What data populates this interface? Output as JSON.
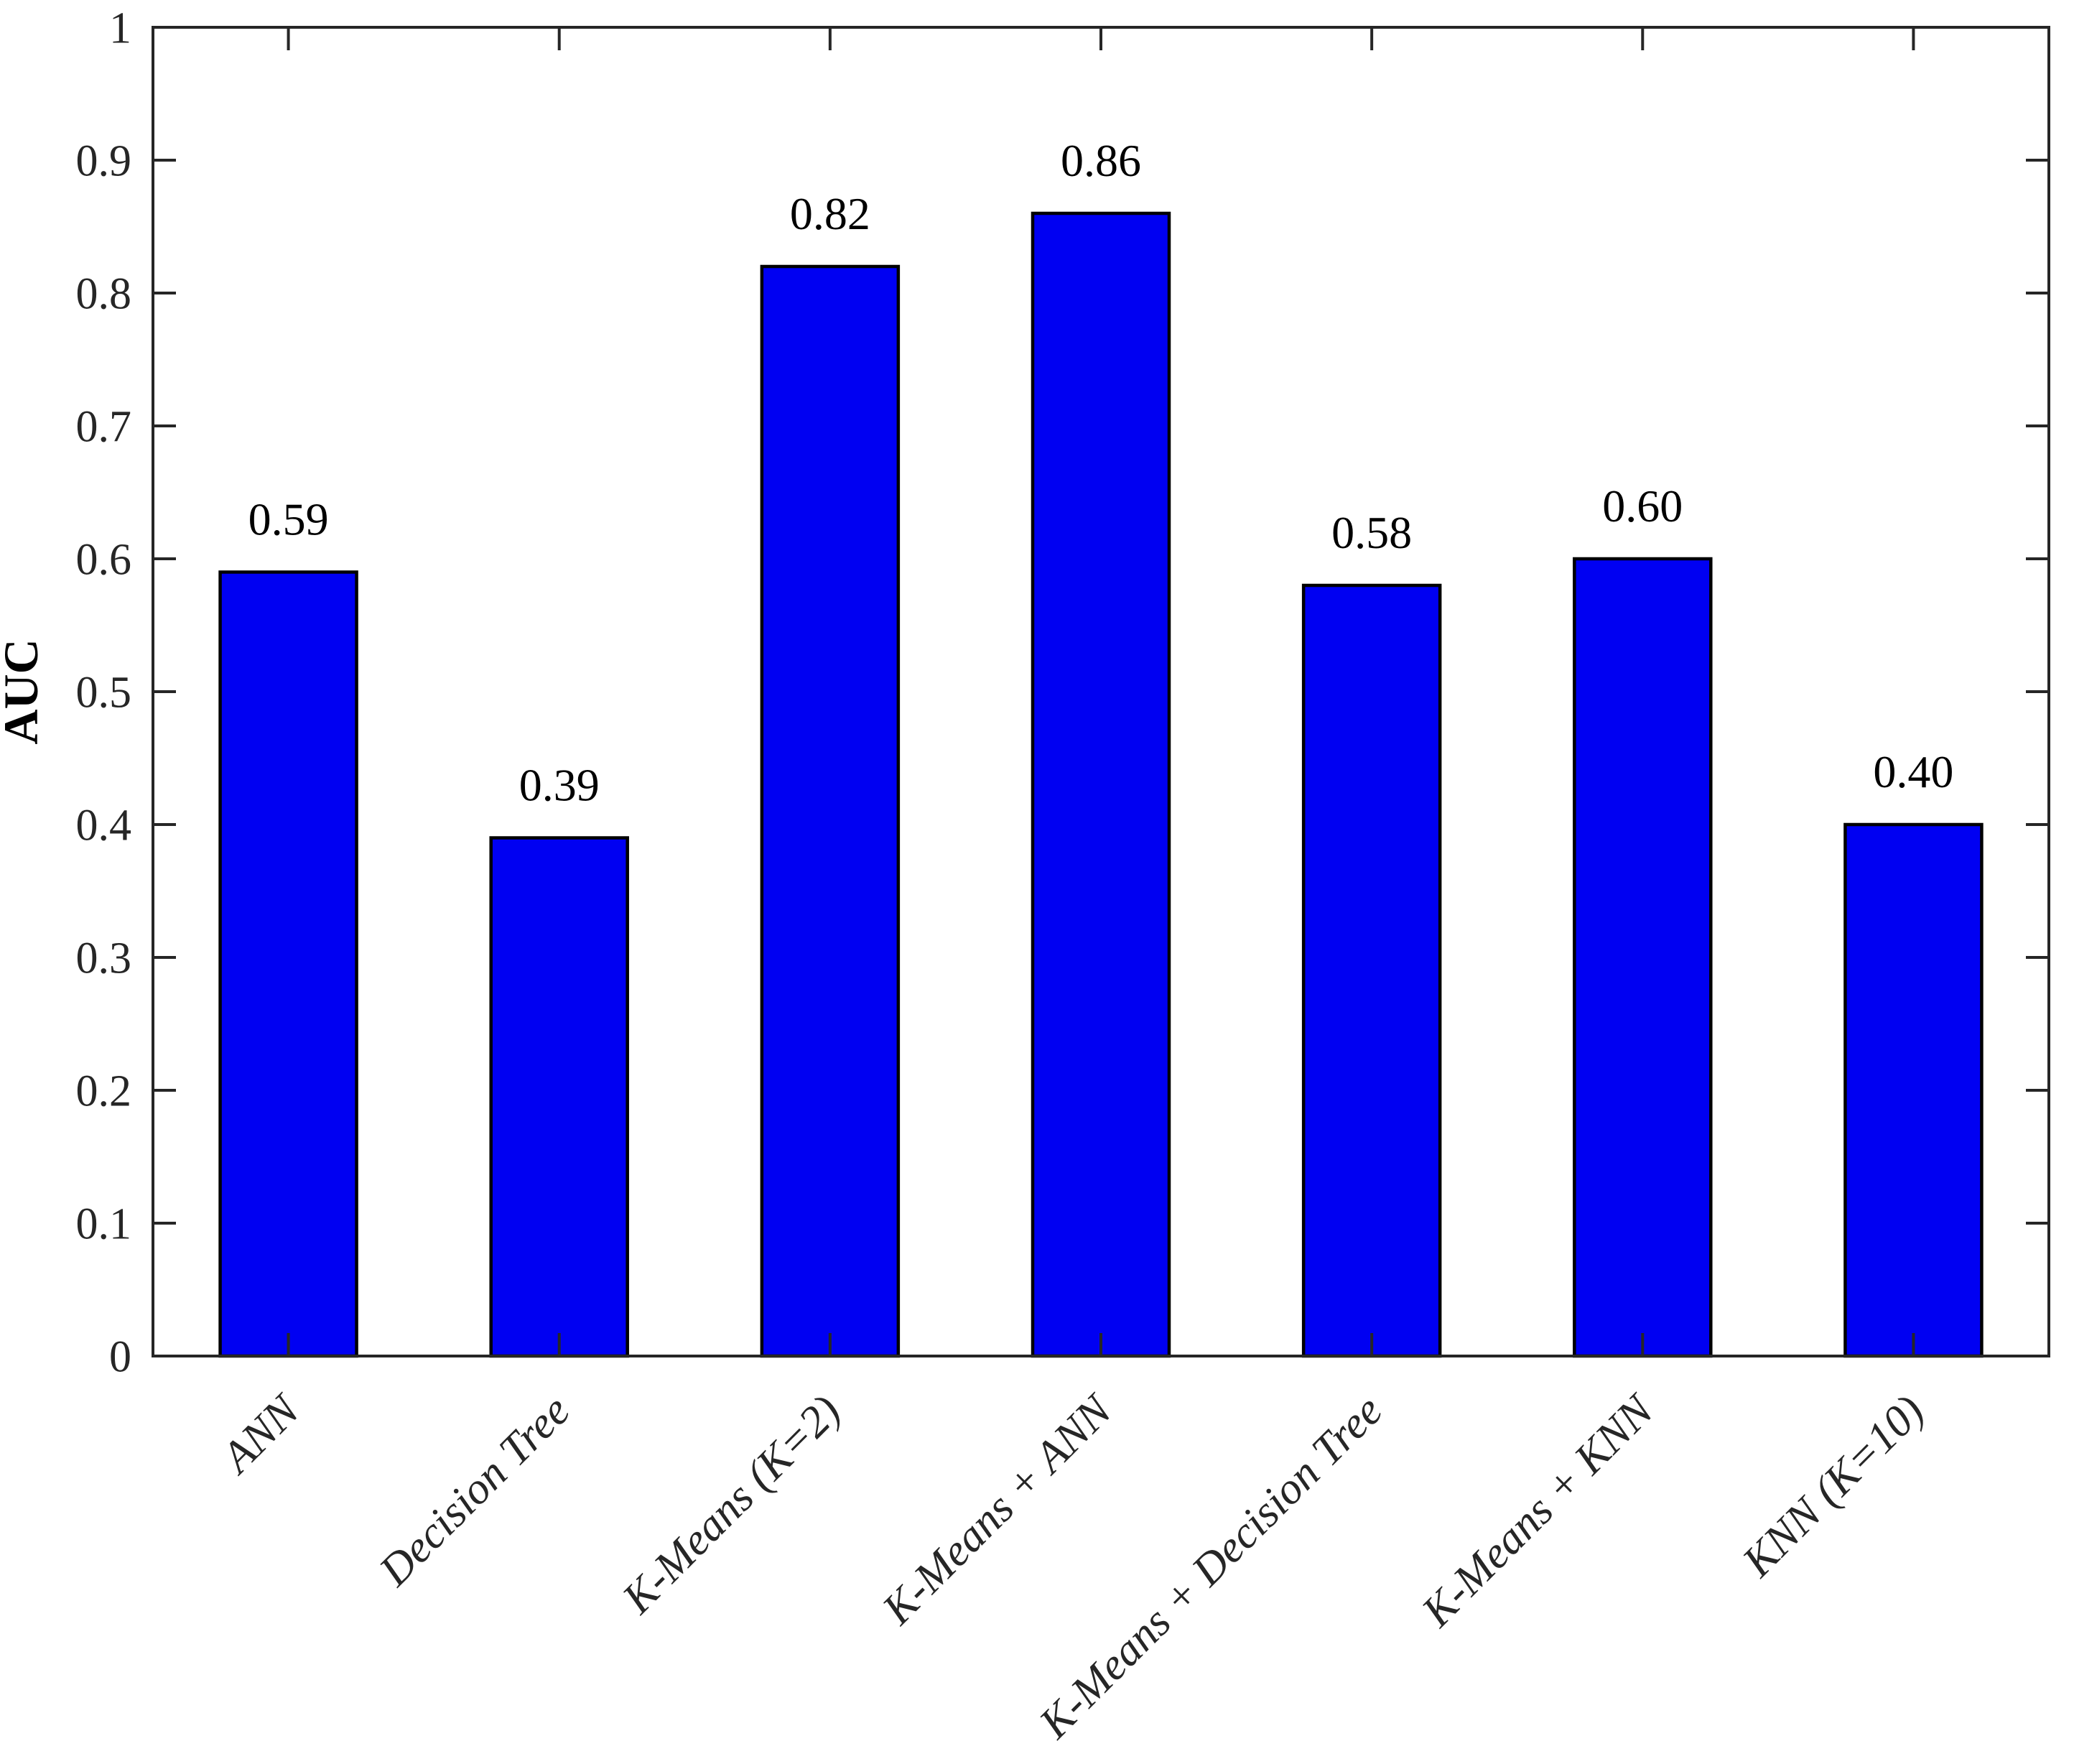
{
  "figure": {
    "description": "Bar chart comparing AUC of classification models"
  },
  "chart_data": {
    "type": "bar",
    "title": "",
    "xlabel": "",
    "ylabel": "AUC",
    "categories": [
      "ANN",
      "Decision Tree",
      "K-Means (K=2)",
      "K-Means + ANN",
      "K-Means + Decision Tree",
      "K-Means + KNN",
      "KNN (K=10)"
    ],
    "values": [
      0.59,
      0.39,
      0.82,
      0.86,
      0.58,
      0.6,
      0.4
    ],
    "value_labels": [
      "0.59",
      "0.39",
      "0.82",
      "0.86",
      "0.58",
      "0.60",
      "0.40"
    ],
    "ylim": [
      0,
      1
    ],
    "yticks": [
      0,
      0.1,
      0.2,
      0.3,
      0.4,
      0.5,
      0.6,
      0.7,
      0.8,
      0.9,
      1
    ],
    "ytick_labels": [
      "0",
      "0.1",
      "0.2",
      "0.3",
      "0.4",
      "0.5",
      "0.6",
      "0.7",
      "0.8",
      "0.9",
      "1"
    ],
    "grid": false,
    "legend_position": "none",
    "bar_color": "#0000f2",
    "bar_edge_color": "#000000",
    "axis_color": "#262626",
    "value_label_color": "#000000",
    "background_color": "#ffffff"
  }
}
